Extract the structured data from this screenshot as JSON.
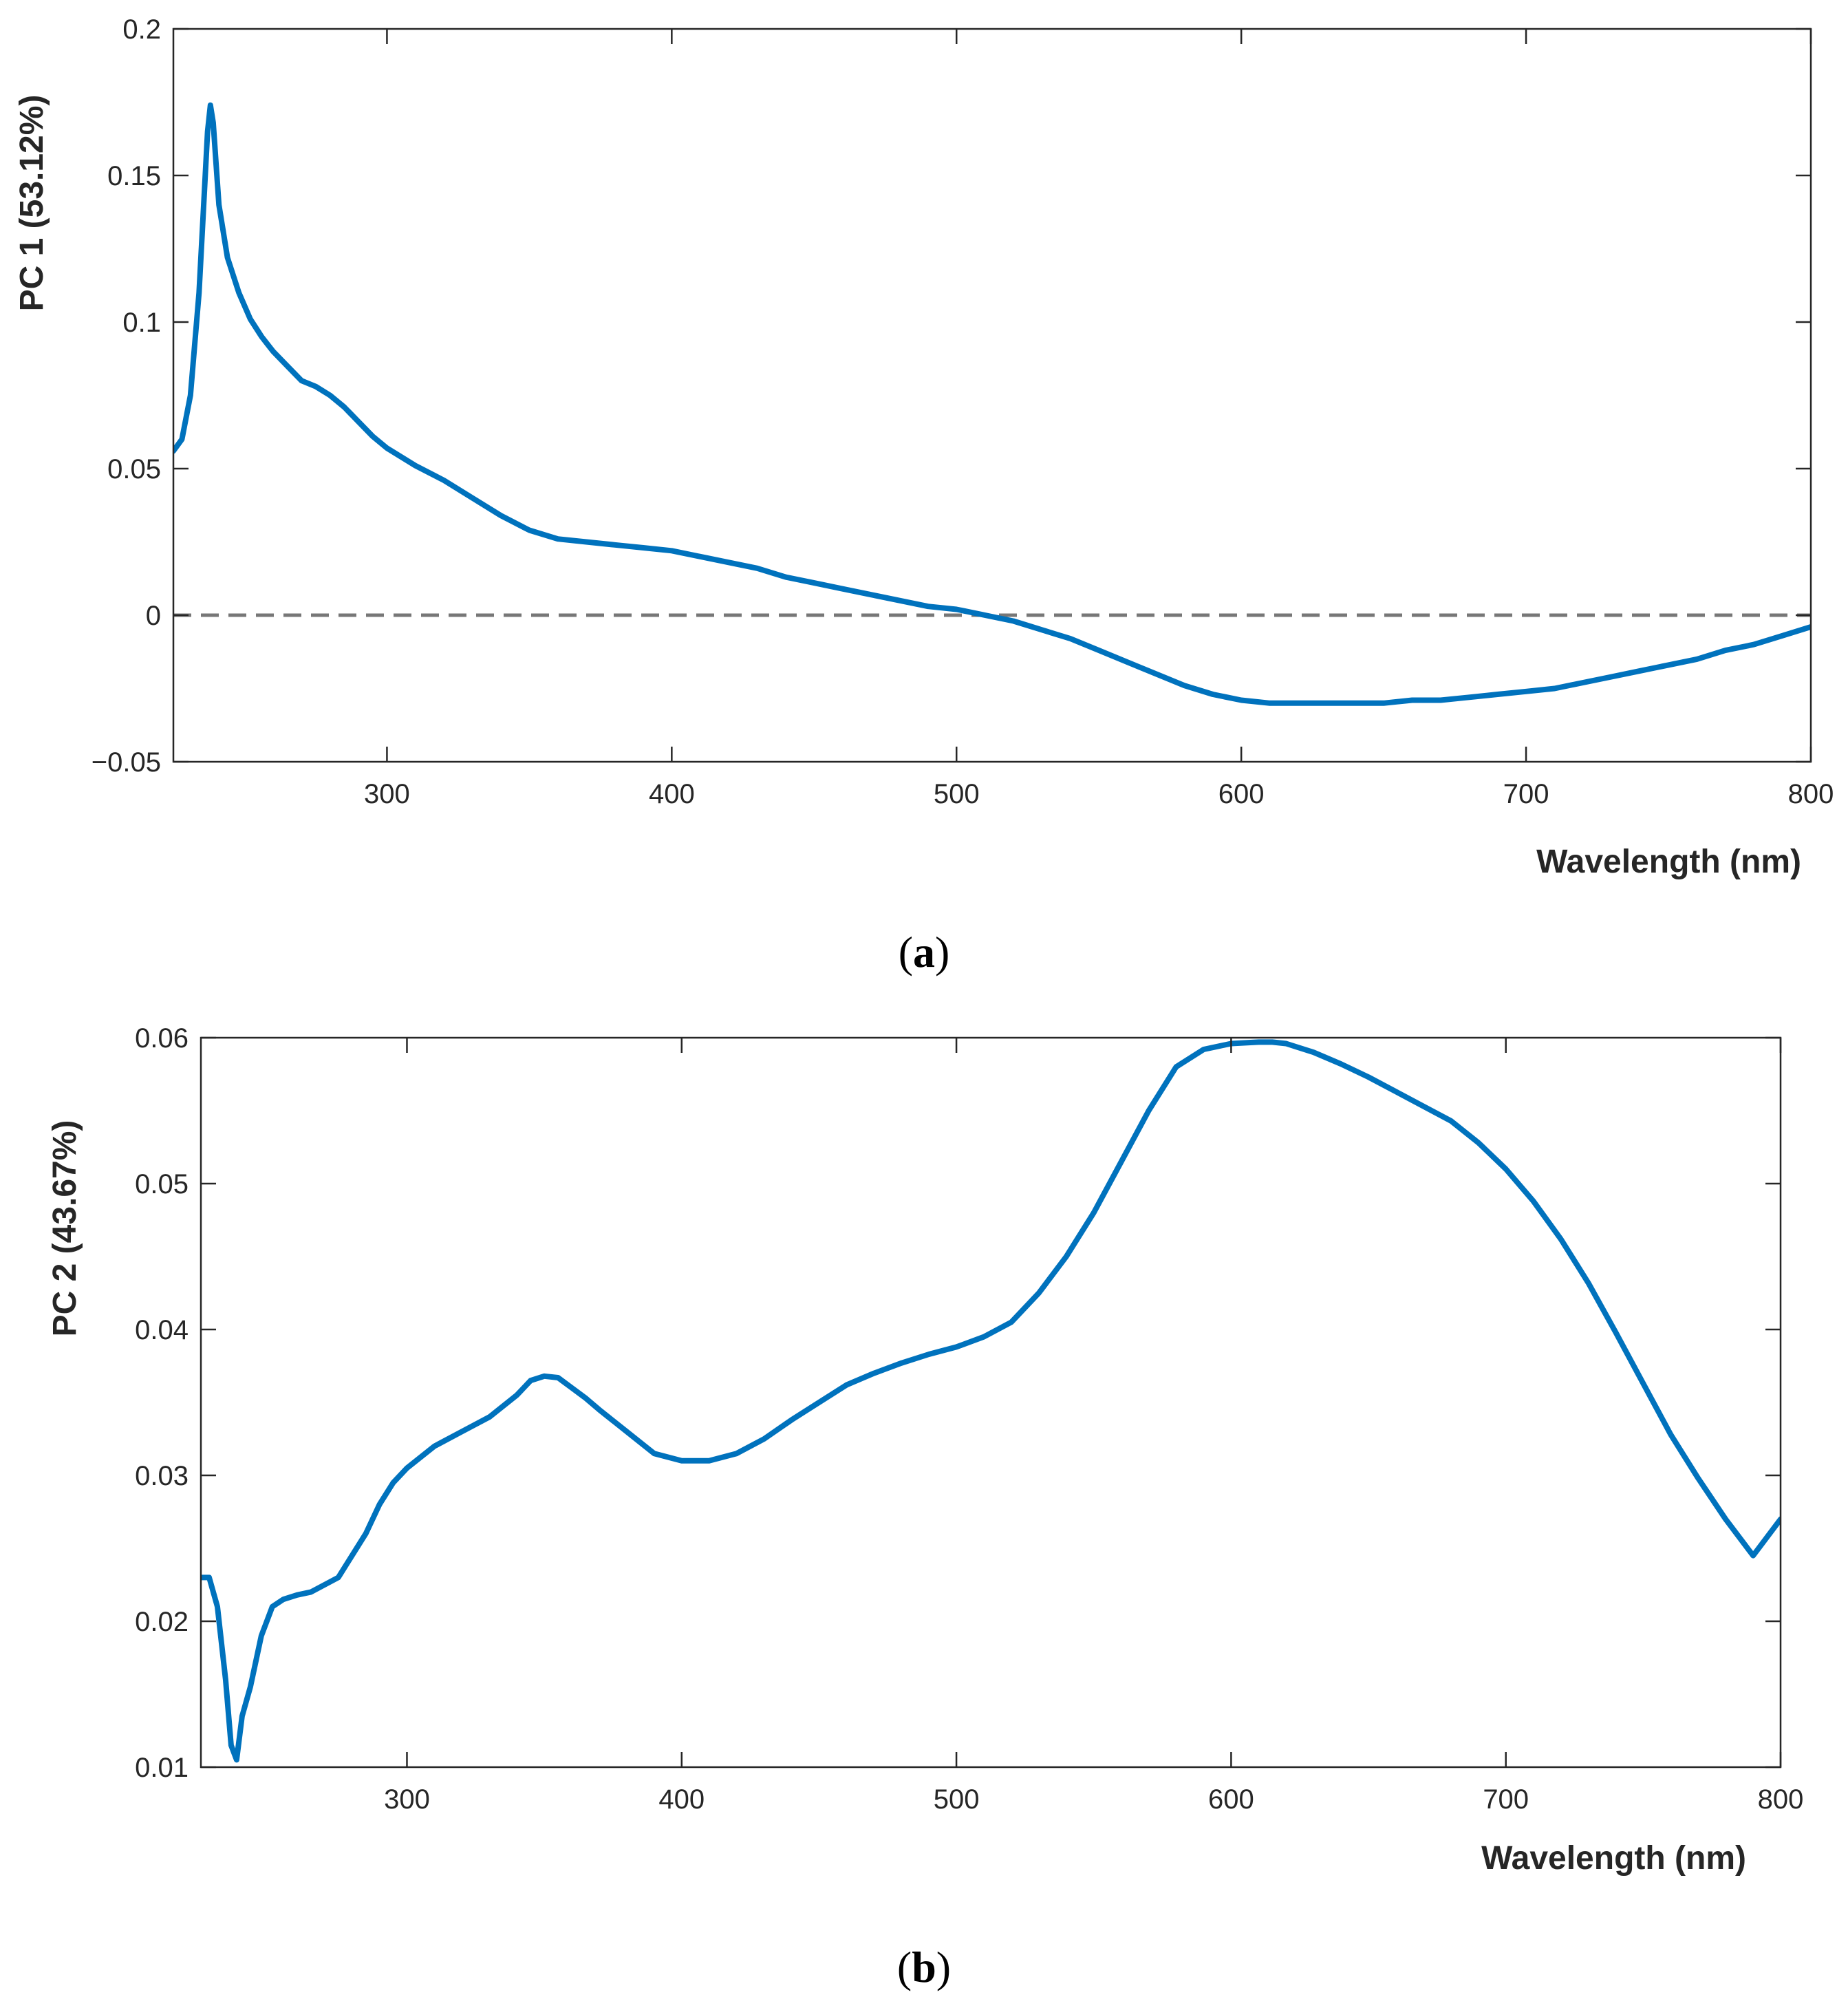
{
  "chart_data": [
    {
      "type": "line",
      "panel_label_open": "(",
      "panel_label_letter": "a",
      "panel_label_close": ")",
      "title": "",
      "xlabel": "Wavelength (nm)",
      "ylabel": "PC 1 (53.12%)",
      "xlim": [
        225,
        800
      ],
      "ylim": [
        -0.05,
        0.2
      ],
      "xticks": [
        300,
        400,
        500,
        600,
        700,
        800
      ],
      "xtick_labels": [
        "300",
        "400",
        "500",
        "600",
        "700",
        "800"
      ],
      "yticks": [
        -0.05,
        0,
        0.05,
        0.1,
        0.15,
        0.2
      ],
      "ytick_labels": [
        "−0.05",
        "0",
        "0.05",
        "0.1",
        "0.15",
        "0.2"
      ],
      "grid": false,
      "reference_line": {
        "y": 0,
        "style": "dashed",
        "color": "#777777"
      },
      "series": [
        {
          "name": "PC 1",
          "color": "#0072BD",
          "x": [
            225,
            228,
            231,
            234,
            237,
            238,
            239,
            241,
            244,
            248,
            252,
            256,
            260,
            265,
            270,
            275,
            280,
            285,
            290,
            295,
            300,
            310,
            320,
            330,
            340,
            350,
            360,
            370,
            380,
            390,
            400,
            410,
            420,
            430,
            440,
            450,
            460,
            470,
            480,
            490,
            500,
            510,
            520,
            530,
            540,
            550,
            560,
            570,
            580,
            590,
            600,
            610,
            620,
            630,
            640,
            650,
            660,
            670,
            680,
            690,
            700,
            710,
            720,
            730,
            740,
            750,
            760,
            770,
            780,
            790,
            800
          ],
          "y": [
            0.056,
            0.06,
            0.075,
            0.11,
            0.165,
            0.174,
            0.168,
            0.14,
            0.122,
            0.11,
            0.101,
            0.095,
            0.09,
            0.085,
            0.08,
            0.078,
            0.075,
            0.071,
            0.066,
            0.061,
            0.057,
            0.051,
            0.046,
            0.04,
            0.034,
            0.029,
            0.026,
            0.025,
            0.024,
            0.023,
            0.022,
            0.02,
            0.018,
            0.016,
            0.013,
            0.011,
            0.009,
            0.007,
            0.005,
            0.003,
            0.002,
            0.0,
            -0.002,
            -0.005,
            -0.008,
            -0.012,
            -0.016,
            -0.02,
            -0.024,
            -0.027,
            -0.029,
            -0.03,
            -0.03,
            -0.03,
            -0.03,
            -0.03,
            -0.029,
            -0.029,
            -0.028,
            -0.027,
            -0.026,
            -0.025,
            -0.023,
            -0.021,
            -0.019,
            -0.017,
            -0.015,
            -0.012,
            -0.01,
            -0.007,
            -0.004
          ]
        }
      ]
    },
    {
      "type": "line",
      "panel_label_open": "(",
      "panel_label_letter": "b",
      "panel_label_close": ")",
      "title": "",
      "xlabel": "Wavelength (nm)",
      "ylabel": "PC 2 (43.67%)",
      "xlim": [
        225,
        800
      ],
      "ylim": [
        0.01,
        0.06
      ],
      "xticks": [
        300,
        400,
        500,
        600,
        700,
        800
      ],
      "xtick_labels": [
        "300",
        "400",
        "500",
        "600",
        "700",
        "800"
      ],
      "yticks": [
        0.01,
        0.02,
        0.03,
        0.04,
        0.05,
        0.06
      ],
      "ytick_labels": [
        "0.01",
        "0.02",
        "0.03",
        "0.04",
        "0.05",
        "0.06"
      ],
      "grid": false,
      "series": [
        {
          "name": "PC 2",
          "color": "#0072BD",
          "x": [
            225,
            228,
            231,
            234,
            236,
            238,
            240,
            243,
            247,
            251,
            255,
            260,
            265,
            270,
            275,
            280,
            285,
            290,
            295,
            300,
            310,
            320,
            330,
            340,
            345,
            350,
            355,
            360,
            365,
            370,
            380,
            390,
            400,
            410,
            420,
            430,
            440,
            450,
            460,
            470,
            480,
            490,
            500,
            510,
            520,
            530,
            540,
            550,
            560,
            570,
            580,
            590,
            600,
            610,
            615,
            620,
            630,
            640,
            650,
            660,
            670,
            680,
            690,
            700,
            710,
            720,
            730,
            740,
            750,
            760,
            770,
            780,
            790,
            800
          ],
          "y": [
            0.023,
            0.023,
            0.021,
            0.016,
            0.0115,
            0.0105,
            0.0135,
            0.0155,
            0.019,
            0.021,
            0.0215,
            0.0218,
            0.022,
            0.0225,
            0.023,
            0.0245,
            0.026,
            0.028,
            0.0295,
            0.0305,
            0.032,
            0.033,
            0.034,
            0.0355,
            0.0365,
            0.0368,
            0.0367,
            0.036,
            0.0353,
            0.0345,
            0.033,
            0.0315,
            0.031,
            0.031,
            0.0315,
            0.0325,
            0.0338,
            0.035,
            0.0362,
            0.037,
            0.0377,
            0.0383,
            0.0388,
            0.0395,
            0.0405,
            0.0425,
            0.045,
            0.048,
            0.0515,
            0.055,
            0.058,
            0.0592,
            0.0596,
            0.0597,
            0.0597,
            0.0596,
            0.059,
            0.0582,
            0.0573,
            0.0563,
            0.0553,
            0.0543,
            0.0528,
            0.051,
            0.0488,
            0.0462,
            0.0432,
            0.0398,
            0.0363,
            0.0328,
            0.0298,
            0.027,
            0.0245,
            0.027
          ]
        }
      ]
    }
  ]
}
